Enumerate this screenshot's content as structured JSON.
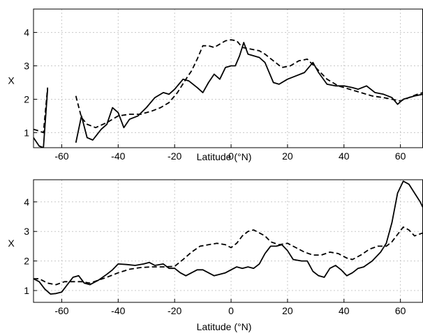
{
  "chart_data": [
    {
      "type": "line",
      "title": "",
      "xlabel": "Latitude (°N)",
      "ylabel": "X",
      "xlim": [
        -70,
        68
      ],
      "ylim": [
        0.55,
        4.7
      ],
      "xticks": [
        -60,
        -40,
        -20,
        0,
        20,
        40,
        60
      ],
      "yticks": [
        1,
        2,
        3,
        4
      ],
      "grid": true,
      "series": [
        {
          "style": "solid",
          "segments": [
            [
              [
                -70,
                0.85
              ],
              [
                -68,
                0.6
              ],
              [
                -66.5,
                0.55
              ],
              [
                -65,
                2.3
              ]
            ],
            [
              [
                -55,
                0.7
              ],
              [
                -53,
                1.5
              ],
              [
                -51,
                0.85
              ],
              [
                -49,
                0.78
              ],
              [
                -46,
                1.1
              ],
              [
                -44,
                1.25
              ],
              [
                -42,
                1.75
              ],
              [
                -40,
                1.6
              ],
              [
                -38,
                1.15
              ],
              [
                -36,
                1.4
              ],
              [
                -33,
                1.5
              ],
              [
                -30,
                1.75
              ],
              [
                -27,
                2.05
              ],
              [
                -24,
                2.2
              ],
              [
                -22,
                2.15
              ],
              [
                -20,
                2.3
              ],
              [
                -17,
                2.6
              ],
              [
                -15,
                2.55
              ],
              [
                -12,
                2.35
              ],
              [
                -10,
                2.2
              ],
              [
                -8,
                2.5
              ],
              [
                -6,
                2.75
              ],
              [
                -4,
                2.6
              ],
              [
                -2,
                2.95
              ],
              [
                0,
                3.0
              ],
              [
                1.5,
                3.0
              ],
              [
                3,
                3.3
              ],
              [
                4.5,
                3.7
              ],
              [
                6,
                3.35
              ],
              [
                8,
                3.3
              ],
              [
                10,
                3.25
              ],
              [
                12,
                3.1
              ],
              [
                15,
                2.5
              ],
              [
                17,
                2.45
              ],
              [
                20,
                2.6
              ],
              [
                23,
                2.7
              ],
              [
                26,
                2.8
              ],
              [
                29,
                3.1
              ],
              [
                31,
                2.8
              ],
              [
                34,
                2.45
              ],
              [
                37,
                2.4
              ],
              [
                40,
                2.4
              ],
              [
                43,
                2.35
              ],
              [
                45,
                2.3
              ],
              [
                48,
                2.4
              ],
              [
                51,
                2.2
              ],
              [
                54,
                2.15
              ],
              [
                57,
                2.05
              ],
              [
                59,
                1.85
              ],
              [
                61,
                2.0
              ],
              [
                63,
                2.05
              ],
              [
                65,
                2.1
              ],
              [
                68,
                2.15
              ]
            ]
          ]
        },
        {
          "style": "dashed",
          "segments": [
            [
              [
                -70,
                1.1
              ],
              [
                -68,
                1.05
              ],
              [
                -66.5,
                1.0
              ],
              [
                -65,
                2.35
              ]
            ],
            [
              [
                -55,
                2.1
              ],
              [
                -53,
                1.45
              ],
              [
                -51,
                1.25
              ],
              [
                -48,
                1.15
              ],
              [
                -44,
                1.3
              ],
              [
                -40,
                1.5
              ],
              [
                -36,
                1.55
              ],
              [
                -32,
                1.55
              ],
              [
                -28,
                1.65
              ],
              [
                -25,
                1.75
              ],
              [
                -22,
                1.9
              ],
              [
                -19,
                2.2
              ],
              [
                -16,
                2.6
              ],
              [
                -14,
                2.85
              ],
              [
                -12,
                3.2
              ],
              [
                -10,
                3.6
              ],
              [
                -8,
                3.6
              ],
              [
                -6,
                3.55
              ],
              [
                -4,
                3.65
              ],
              [
                -2,
                3.75
              ],
              [
                0,
                3.78
              ],
              [
                2,
                3.75
              ],
              [
                4,
                3.55
              ],
              [
                7,
                3.5
              ],
              [
                10,
                3.45
              ],
              [
                12,
                3.35
              ],
              [
                15,
                3.15
              ],
              [
                18,
                2.95
              ],
              [
                21,
                3.0
              ],
              [
                24,
                3.15
              ],
              [
                27,
                3.2
              ],
              [
                30,
                2.95
              ],
              [
                34,
                2.6
              ],
              [
                38,
                2.4
              ],
              [
                42,
                2.3
              ],
              [
                46,
                2.2
              ],
              [
                50,
                2.1
              ],
              [
                54,
                2.05
              ],
              [
                57,
                2.0
              ],
              [
                60,
                1.95
              ],
              [
                63,
                2.05
              ],
              [
                66,
                2.15
              ],
              [
                68,
                2.2
              ]
            ]
          ]
        }
      ]
    },
    {
      "type": "line",
      "title": "",
      "xlabel": "Latitude (°N)",
      "ylabel": "X",
      "xlim": [
        -70,
        68
      ],
      "ylim": [
        0.6,
        4.75
      ],
      "xticks": [
        -60,
        -40,
        -20,
        0,
        20,
        40,
        60
      ],
      "yticks": [
        1,
        2,
        3,
        4
      ],
      "grid": true,
      "series": [
        {
          "style": "solid",
          "segments": [
            [
              [
                -70,
                1.4
              ],
              [
                -68,
                1.3
              ],
              [
                -66,
                1.05
              ],
              [
                -64,
                0.88
              ],
              [
                -62,
                0.9
              ],
              [
                -60,
                0.95
              ],
              [
                -58,
                1.2
              ],
              [
                -56,
                1.45
              ],
              [
                -54,
                1.5
              ],
              [
                -52,
                1.25
              ],
              [
                -50,
                1.2
              ],
              [
                -47,
                1.35
              ],
              [
                -44,
                1.55
              ],
              [
                -42,
                1.7
              ],
              [
                -40,
                1.9
              ],
              [
                -37,
                1.88
              ],
              [
                -34,
                1.85
              ],
              [
                -31,
                1.9
              ],
              [
                -29,
                1.95
              ],
              [
                -27,
                1.85
              ],
              [
                -24,
                1.9
              ],
              [
                -22,
                1.75
              ],
              [
                -20,
                1.75
              ],
              [
                -18,
                1.6
              ],
              [
                -16,
                1.5
              ],
              [
                -14,
                1.6
              ],
              [
                -12,
                1.7
              ],
              [
                -10,
                1.7
              ],
              [
                -8,
                1.6
              ],
              [
                -6,
                1.5
              ],
              [
                -4,
                1.55
              ],
              [
                -2,
                1.6
              ],
              [
                0,
                1.7
              ],
              [
                2,
                1.8
              ],
              [
                4,
                1.75
              ],
              [
                6,
                1.8
              ],
              [
                8,
                1.75
              ],
              [
                10,
                1.9
              ],
              [
                12,
                2.25
              ],
              [
                14,
                2.5
              ],
              [
                16,
                2.5
              ],
              [
                18,
                2.55
              ],
              [
                20,
                2.35
              ],
              [
                22,
                2.05
              ],
              [
                25,
                2.0
              ],
              [
                27,
                2.0
              ],
              [
                29,
                1.65
              ],
              [
                31,
                1.5
              ],
              [
                33,
                1.45
              ],
              [
                35,
                1.75
              ],
              [
                37,
                1.85
              ],
              [
                39,
                1.7
              ],
              [
                41,
                1.5
              ],
              [
                43,
                1.6
              ],
              [
                45,
                1.75
              ],
              [
                47,
                1.8
              ],
              [
                50,
                2.0
              ],
              [
                53,
                2.3
              ],
              [
                55,
                2.6
              ],
              [
                57,
                3.3
              ],
              [
                59,
                4.3
              ],
              [
                61,
                4.7
              ],
              [
                63,
                4.6
              ],
              [
                65,
                4.3
              ],
              [
                67,
                4.0
              ],
              [
                68,
                3.8
              ]
            ]
          ]
        },
        {
          "style": "dashed",
          "segments": [
            [
              [
                -70,
                1.4
              ],
              [
                -68,
                1.4
              ],
              [
                -65,
                1.25
              ],
              [
                -62,
                1.2
              ],
              [
                -59,
                1.3
              ],
              [
                -56,
                1.3
              ],
              [
                -53,
                1.3
              ],
              [
                -50,
                1.25
              ],
              [
                -47,
                1.35
              ],
              [
                -44,
                1.45
              ],
              [
                -40,
                1.6
              ],
              [
                -36,
                1.72
              ],
              [
                -32,
                1.78
              ],
              [
                -28,
                1.8
              ],
              [
                -24,
                1.8
              ],
              [
                -20,
                1.82
              ],
              [
                -17,
                2.05
              ],
              [
                -14,
                2.3
              ],
              [
                -11,
                2.5
              ],
              [
                -8,
                2.55
              ],
              [
                -5,
                2.6
              ],
              [
                -2,
                2.55
              ],
              [
                0,
                2.45
              ],
              [
                2,
                2.6
              ],
              [
                4,
                2.85
              ],
              [
                6,
                3.0
              ],
              [
                8,
                3.05
              ],
              [
                10,
                2.95
              ],
              [
                12,
                2.85
              ],
              [
                14,
                2.65
              ],
              [
                17,
                2.55
              ],
              [
                20,
                2.6
              ],
              [
                23,
                2.45
              ],
              [
                26,
                2.3
              ],
              [
                29,
                2.2
              ],
              [
                32,
                2.2
              ],
              [
                35,
                2.3
              ],
              [
                38,
                2.25
              ],
              [
                41,
                2.1
              ],
              [
                43,
                2.05
              ],
              [
                46,
                2.2
              ],
              [
                49,
                2.4
              ],
              [
                52,
                2.5
              ],
              [
                55,
                2.5
              ],
              [
                57,
                2.65
              ],
              [
                59,
                2.9
              ],
              [
                61,
                3.15
              ],
              [
                63,
                3.05
              ],
              [
                65,
                2.85
              ],
              [
                68,
                2.95
              ]
            ]
          ]
        }
      ]
    }
  ]
}
